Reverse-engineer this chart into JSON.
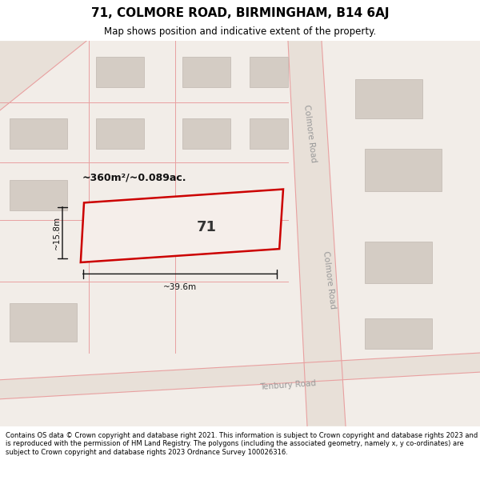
{
  "title": "71, COLMORE ROAD, BIRMINGHAM, B14 6AJ",
  "subtitle": "Map shows position and indicative extent of the property.",
  "footer": "Contains OS data © Crown copyright and database right 2021. This information is subject to Crown copyright and database rights 2023 and is reproduced with the permission of HM Land Registry. The polygons (including the associated geometry, namely x, y co-ordinates) are subject to Crown copyright and database rights 2023 Ordnance Survey 100026316.",
  "map_bg": "#f2ede8",
  "road_fill": "#e8e0d8",
  "road_line": "#e8a0a0",
  "building_fill": "#d4ccc4",
  "building_edge": "#c0b8b0",
  "prop_fill": "#f5eeea",
  "prop_edge": "#cc0000",
  "dim_color": "#111111",
  "label_color": "#999999",
  "area_label": "~360m²/~0.089ac.",
  "width_label": "~39.6m",
  "height_label": "~15.8m",
  "prop_num": "71",
  "colmore_label": "Colmore Road",
  "tenbury_label": "Tenbury Road"
}
